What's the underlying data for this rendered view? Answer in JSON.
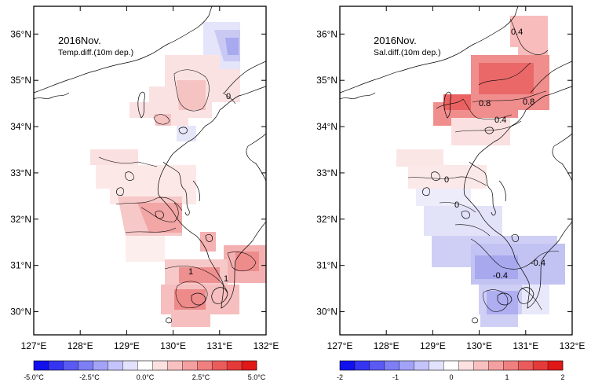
{
  "lon_ticks": [
    "127°E",
    "128°E",
    "129°E",
    "130°E",
    "131°E",
    "132°E"
  ],
  "lat_ticks": [
    "36°N",
    "35°N",
    "34°N",
    "33°N",
    "32°N",
    "31°N",
    "30°N"
  ],
  "map_extent": {
    "lon": [
      127,
      132
    ],
    "lat": [
      29.5,
      36.6
    ]
  },
  "panels": [
    {
      "id": "temp",
      "title": "2016Nov.",
      "subtitle": "Temp.diff.(10m dep.)",
      "colorbar_labels": [
        "-5.0°C",
        "-2.5°C",
        "0.0°C",
        "2.5°C",
        "5.0°C"
      ],
      "colorbar_range": [
        -5,
        5
      ],
      "contour_labels": [
        "0",
        "1",
        "1"
      ]
    },
    {
      "id": "sal",
      "title": "2016Nov.",
      "subtitle": "Sal.diff.(10m dep.)",
      "colorbar_labels": [
        "-2",
        "-1",
        "0",
        "1",
        "2"
      ],
      "colorbar_range": [
        -2,
        2
      ],
      "contour_labels": [
        "0.4",
        "0.8",
        "0.8",
        "0.4",
        "0",
        "0",
        "-0.4",
        "-0.4"
      ]
    }
  ],
  "colors": {
    "warm": [
      "#fde3e3",
      "#f9c6c6",
      "#f4a4a4",
      "#ef7f7f",
      "#ea5656"
    ],
    "cool": [
      "#e6e6fb",
      "#cfcff6",
      "#b6b6f1",
      "#9999ec",
      "#7d7de8"
    ],
    "colorbar": [
      "#1111ee",
      "#3535f1",
      "#5a5af3",
      "#7e7ef5",
      "#a2a2f7",
      "#c4c4fa",
      "#e2e2fc",
      "#ffffff",
      "#fde0e0",
      "#f9c0c0",
      "#f5a0a0",
      "#f08080",
      "#ea5c5c",
      "#e53a3a",
      "#e01818"
    ]
  }
}
